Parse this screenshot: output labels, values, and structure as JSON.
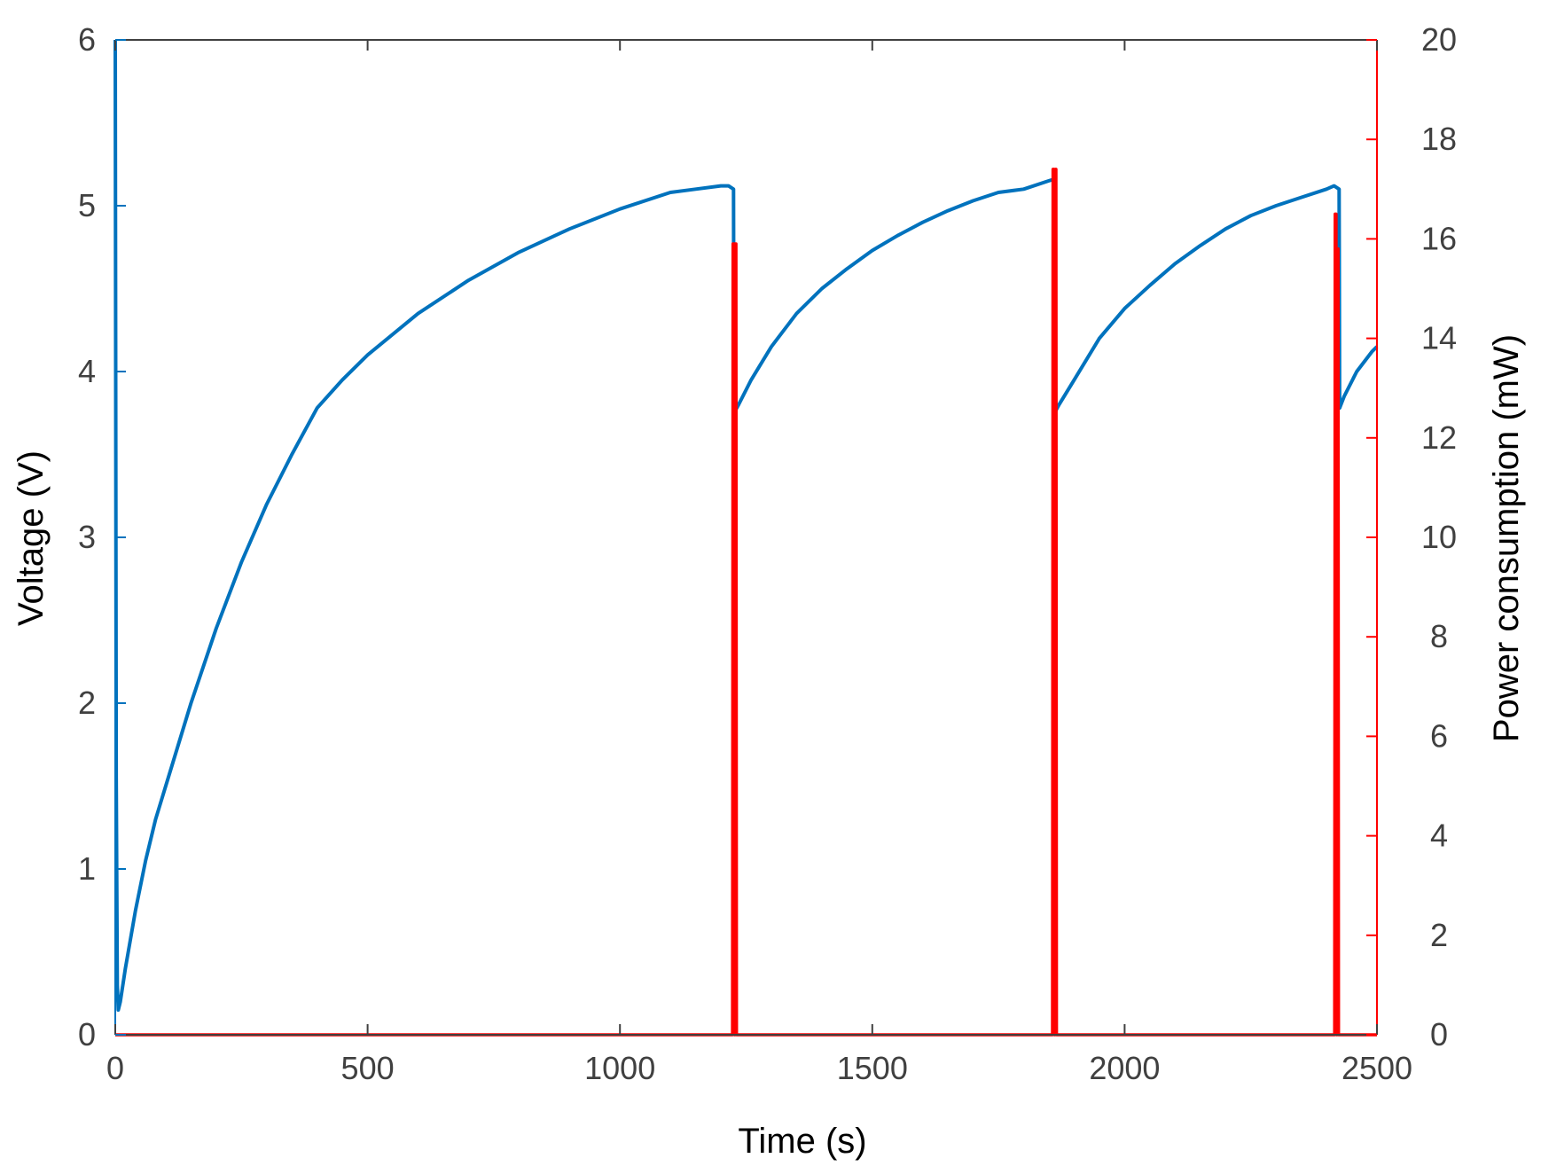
{
  "chart_data": {
    "type": "line",
    "title": "",
    "xlabel": "Time (s)",
    "ylabel_left": "Voltage (V)",
    "ylabel_right": "Power consumption (mW)",
    "xlim": [
      0,
      2500
    ],
    "ylim_left": [
      0,
      6
    ],
    "ylim_right": [
      0,
      20
    ],
    "x_ticks": [
      0,
      500,
      1000,
      1500,
      2000,
      2500
    ],
    "y_left_ticks": [
      0,
      1,
      2,
      3,
      4,
      5,
      6
    ],
    "y_right_ticks": [
      0,
      2,
      4,
      6,
      8,
      10,
      12,
      14,
      16,
      18,
      20
    ],
    "grid": false,
    "legend": "none",
    "colors": {
      "voltage": "#0072BD",
      "power": "#FF0000",
      "axis": "#404040"
    },
    "series": [
      {
        "axis": "left",
        "x": [
          0,
          2,
          4,
          6,
          10,
          20,
          40,
          60,
          80,
          100,
          150,
          200,
          250,
          300,
          350,
          400,
          450,
          500,
          600,
          700,
          800,
          900,
          1000,
          1100,
          1150,
          1200,
          1215,
          1225,
          1226,
          1235,
          1260,
          1300,
          1350,
          1400,
          1450,
          1500,
          1550,
          1600,
          1650,
          1700,
          1750,
          1800,
          1850,
          1860,
          1861,
          1870,
          1900,
          1950,
          2000,
          2050,
          2100,
          2150,
          2200,
          2250,
          2300,
          2350,
          2400,
          2415,
          2425,
          2426,
          2435,
          2460,
          2490,
          2500
        ],
        "y": [
          6.0,
          1.55,
          0.3,
          0.15,
          0.2,
          0.4,
          0.75,
          1.05,
          1.3,
          1.5,
          2.0,
          2.45,
          2.85,
          3.2,
          3.5,
          3.78,
          3.95,
          4.1,
          4.35,
          4.55,
          4.72,
          4.86,
          4.98,
          5.08,
          5.1,
          5.12,
          5.12,
          5.1,
          3.75,
          3.8,
          3.95,
          4.15,
          4.35,
          4.5,
          4.62,
          4.73,
          4.82,
          4.9,
          4.97,
          5.03,
          5.08,
          5.1,
          5.15,
          5.16,
          3.75,
          3.8,
          3.95,
          4.2,
          4.38,
          4.52,
          4.65,
          4.76,
          4.86,
          4.94,
          5.0,
          5.05,
          5.1,
          5.12,
          5.1,
          3.78,
          3.85,
          4.0,
          4.12,
          4.15
        ]
      },
      {
        "axis": "right",
        "x": [
          0,
          1222,
          1223,
          1224,
          1226,
          1227,
          1228,
          1229,
          1230,
          1231,
          1232,
          1233,
          1856,
          1857,
          1858,
          1860,
          1861,
          1862,
          1863,
          1864,
          1865,
          1866,
          2415,
          2416,
          2417,
          2419,
          2420,
          2421,
          2422,
          2423,
          2424,
          2425,
          2500
        ],
        "y": [
          0,
          0,
          0,
          15.9,
          15.9,
          0,
          0,
          15.9,
          15.9,
          0,
          0,
          0,
          0,
          0,
          17.4,
          17.4,
          0,
          0,
          17.4,
          17.4,
          0,
          0,
          0,
          0,
          16.5,
          16.5,
          0,
          0,
          15.8,
          15.8,
          0,
          0,
          0
        ]
      }
    ]
  }
}
